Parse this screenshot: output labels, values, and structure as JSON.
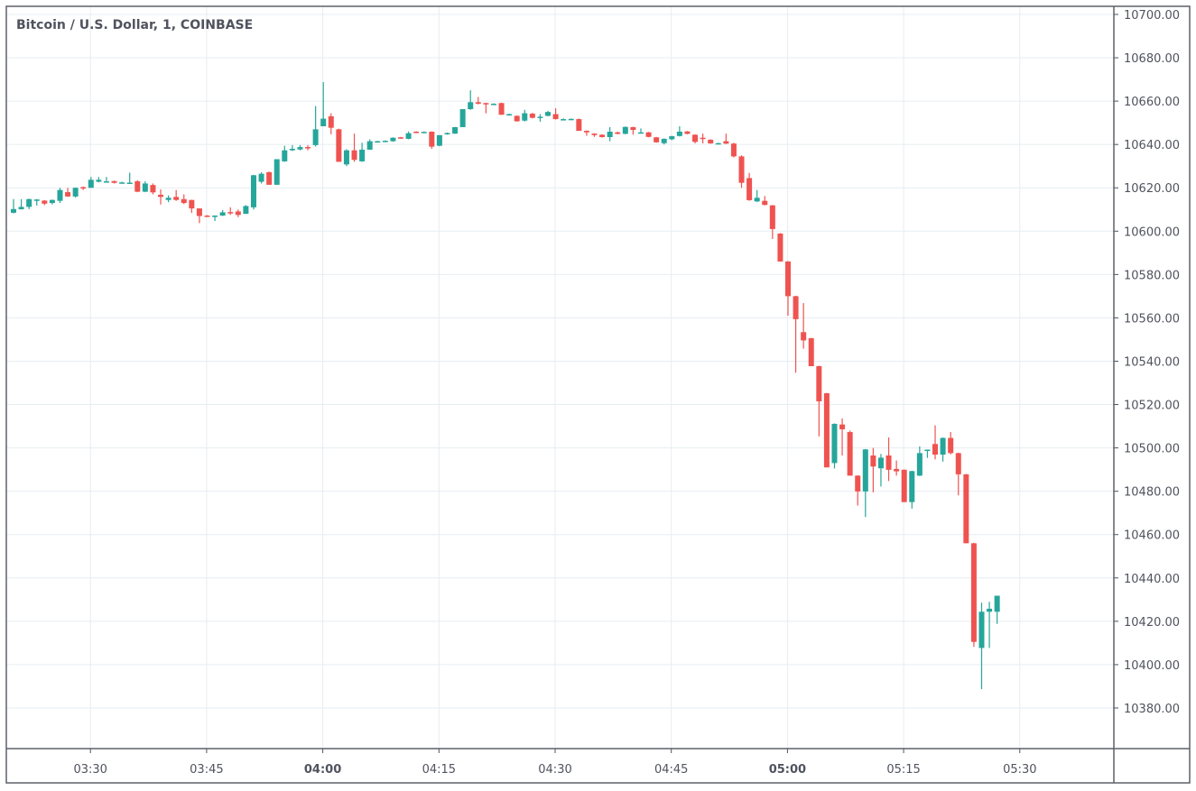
{
  "chart_data": {
    "type": "candlestick",
    "title": "Bitcoin / U.S. Dollar, 1, COINBASE",
    "interval_minutes": 1,
    "start_time": "03:20",
    "ylim": [
      10364,
      10703
    ],
    "y_ticks": [
      "10700.00",
      "10680.00",
      "10660.00",
      "10640.00",
      "10620.00",
      "10600.00",
      "10580.00",
      "10560.00",
      "10540.00",
      "10520.00",
      "10500.00",
      "10480.00",
      "10460.00",
      "10440.00",
      "10420.00",
      "10400.00",
      "10380.00"
    ],
    "x_ticks": [
      {
        "label": "03:30",
        "bold": false
      },
      {
        "label": "03:45",
        "bold": false
      },
      {
        "label": "04:00",
        "bold": true
      },
      {
        "label": "04:15",
        "bold": false
      },
      {
        "label": "04:30",
        "bold": false
      },
      {
        "label": "04:45",
        "bold": false
      },
      {
        "label": "05:00",
        "bold": true
      },
      {
        "label": "05:15",
        "bold": false
      },
      {
        "label": "05:30",
        "bold": false
      }
    ],
    "grid": true,
    "colors": {
      "up": "#26a69a",
      "down": "#ef5350",
      "grid": "#e6edf2",
      "axis": "#50535e"
    },
    "ohlc_columns": [
      "open",
      "high",
      "low",
      "close"
    ],
    "ohlc": [
      [
        10608.5,
        10614.8,
        10608.2,
        10610.2
      ],
      [
        10610.1,
        10614.8,
        10610.0,
        10611.2
      ],
      [
        10611.2,
        10615.0,
        10610.2,
        10614.8
      ],
      [
        10614.3,
        10614.8,
        10611.8,
        10614.6
      ],
      [
        10614.1,
        10614.3,
        10612.0,
        10612.7
      ],
      [
        10613.0,
        10614.6,
        10612.3,
        10614.4
      ],
      [
        10614.0,
        10620.0,
        10613.0,
        10619.0
      ],
      [
        10618.0,
        10620.0,
        10615.8,
        10616.0
      ],
      [
        10616.0,
        10620.2,
        10615.5,
        10620.0
      ],
      [
        10620.3,
        10620.6,
        10619.0,
        10619.8
      ],
      [
        10620.0,
        10625.0,
        10620.0,
        10623.7
      ],
      [
        10622.8,
        10625.0,
        10622.5,
        10623.7
      ],
      [
        10622.6,
        10625.0,
        10622.5,
        10623.0
      ],
      [
        10623.1,
        10623.3,
        10622.0,
        10622.3
      ],
      [
        10622.3,
        10622.8,
        10622.0,
        10622.5
      ],
      [
        10622.0,
        10627.0,
        10622.0,
        10622.4
      ],
      [
        10623.0,
        10623.5,
        10618.0,
        10618.2
      ],
      [
        10618.2,
        10623.0,
        10618.0,
        10622.0
      ],
      [
        10621.3,
        10622.0,
        10617.0,
        10617.9
      ],
      [
        10616.8,
        10619.3,
        10612.3,
        10615.8
      ],
      [
        10614.4,
        10616.5,
        10613.4,
        10615.4
      ],
      [
        10615.8,
        10619.0,
        10614.0,
        10614.4
      ],
      [
        10614.8,
        10617.0,
        10612.5,
        10613.0
      ],
      [
        10614.4,
        10614.5,
        10608.4,
        10610.5
      ],
      [
        10610.5,
        10610.5,
        10603.7,
        10607.0
      ],
      [
        10607.2,
        10607.4,
        10606.5,
        10607.0
      ],
      [
        10606.9,
        10607.3,
        10604.7,
        10607.2
      ],
      [
        10607.2,
        10609.7,
        10607.0,
        10608.7
      ],
      [
        10608.8,
        10611.0,
        10607.5,
        10608.2
      ],
      [
        10609.1,
        10610.0,
        10606.5,
        10607.5
      ],
      [
        10608.0,
        10612.0,
        10608.0,
        10611.6
      ],
      [
        10611.0,
        10626.0,
        10610.0,
        10625.8
      ],
      [
        10622.8,
        10627.2,
        10622.0,
        10626.5
      ],
      [
        10627.2,
        10627.5,
        10621.4,
        10621.4
      ],
      [
        10621.4,
        10633.2,
        10621.4,
        10633.2
      ],
      [
        10632.2,
        10639.4,
        10632.0,
        10637.3
      ],
      [
        10637.3,
        10639.7,
        10637.0,
        10638.0
      ],
      [
        10637.7,
        10639.7,
        10637.3,
        10638.8
      ],
      [
        10638.8,
        10639.7,
        10637.3,
        10638.5
      ],
      [
        10639.7,
        10657.7,
        10639.1,
        10647.0
      ],
      [
        10648.4,
        10668.8,
        10648.4,
        10651.9
      ],
      [
        10653.0,
        10654.4,
        10644.7,
        10647.7
      ],
      [
        10647.0,
        10647.3,
        10632.0,
        10632.0
      ],
      [
        10630.8,
        10637.8,
        10630.0,
        10637.3
      ],
      [
        10637.3,
        10645.0,
        10632.0,
        10632.9
      ],
      [
        10632.2,
        10640.8,
        10632.0,
        10637.6
      ],
      [
        10637.6,
        10642.4,
        10637.6,
        10641.5
      ],
      [
        10641.3,
        10641.7,
        10641.0,
        10641.5
      ],
      [
        10641.5,
        10641.9,
        10641.3,
        10641.7
      ],
      [
        10641.5,
        10643.3,
        10641.3,
        10643.1
      ],
      [
        10643.3,
        10643.5,
        10642.6,
        10642.8
      ],
      [
        10642.6,
        10646.0,
        10642.4,
        10645.2
      ],
      [
        10645.9,
        10646.1,
        10645.2,
        10645.4
      ],
      [
        10645.8,
        10646.0,
        10645.6,
        10645.8
      ],
      [
        10645.9,
        10646.0,
        10638.0,
        10639.0
      ],
      [
        10639.4,
        10644.3,
        10639.2,
        10644.3
      ],
      [
        10644.7,
        10645.5,
        10644.5,
        10645.3
      ],
      [
        10645.0,
        10648.1,
        10644.9,
        10648.0
      ],
      [
        10648.0,
        10656.3,
        10648.0,
        10656.3
      ],
      [
        10656.3,
        10665.0,
        10656.0,
        10659.5
      ],
      [
        10659.5,
        10661.9,
        10658.5,
        10658.8
      ],
      [
        10659.1,
        10659.3,
        10654.4,
        10658.8
      ],
      [
        10658.8,
        10659.0,
        10658.6,
        10658.8
      ],
      [
        10659.1,
        10659.3,
        10653.7,
        10653.7
      ],
      [
        10653.7,
        10654.2,
        10653.5,
        10654.0
      ],
      [
        10653.2,
        10653.4,
        10650.5,
        10650.7
      ],
      [
        10651.0,
        10656.0,
        10650.6,
        10654.4
      ],
      [
        10654.2,
        10654.6,
        10652.0,
        10652.3
      ],
      [
        10652.5,
        10654.0,
        10650.5,
        10652.8
      ],
      [
        10653.2,
        10655.5,
        10653.0,
        10655.0
      ],
      [
        10654.0,
        10656.7,
        10651.5,
        10651.7
      ],
      [
        10651.7,
        10652.0,
        10651.5,
        10651.7
      ],
      [
        10651.7,
        10652.0,
        10651.5,
        10651.8
      ],
      [
        10651.7,
        10652.0,
        10646.3,
        10646.3
      ],
      [
        10646.3,
        10646.5,
        10644.0,
        10645.6
      ],
      [
        10645.0,
        10645.2,
        10643.5,
        10644.3
      ],
      [
        10644.5,
        10644.7,
        10643.2,
        10643.4
      ],
      [
        10643.4,
        10648.0,
        10641.5,
        10645.9
      ],
      [
        10645.6,
        10645.9,
        10644.7,
        10644.9
      ],
      [
        10644.9,
        10648.3,
        10644.7,
        10648.1
      ],
      [
        10648.0,
        10648.2,
        10644.5,
        10646.7
      ],
      [
        10645.4,
        10647.4,
        10645.2,
        10645.6
      ],
      [
        10645.6,
        10645.8,
        10643.3,
        10643.5
      ],
      [
        10643.3,
        10643.5,
        10640.8,
        10641.0
      ],
      [
        10640.6,
        10642.8,
        10640.0,
        10642.6
      ],
      [
        10642.4,
        10644.0,
        10642.0,
        10643.8
      ],
      [
        10643.9,
        10648.4,
        10643.7,
        10645.9
      ],
      [
        10646.0,
        10646.2,
        10644.7,
        10644.9
      ],
      [
        10644.5,
        10644.7,
        10640.5,
        10641.2
      ],
      [
        10643.1,
        10645.0,
        10640.5,
        10642.6
      ],
      [
        10642.2,
        10642.4,
        10640.3,
        10640.5
      ],
      [
        10640.4,
        10640.8,
        10640.3,
        10640.6
      ],
      [
        10641.5,
        10645.0,
        10640.2,
        10640.4
      ],
      [
        10640.4,
        10640.8,
        10634.0,
        10634.5
      ],
      [
        10634.5,
        10635.0,
        10620.0,
        10622.3
      ],
      [
        10624.5,
        10626.9,
        10614.0,
        10614.3
      ],
      [
        10613.7,
        10619.0,
        10613.5,
        10615.4
      ],
      [
        10614.0,
        10616.2,
        10611.9,
        10612.1
      ],
      [
        10611.9,
        10612.1,
        10596.4,
        10601.0
      ],
      [
        10598.9,
        10599.1,
        10586.0,
        10586.0
      ],
      [
        10586.0,
        10586.2,
        10561.0,
        10570.0
      ],
      [
        10570.0,
        10570.2,
        10534.7,
        10559.4
      ],
      [
        10553.4,
        10566.8,
        10545.8,
        10549.6
      ],
      [
        10550.6,
        10550.8,
        10537.7,
        10537.7
      ],
      [
        10537.7,
        10537.9,
        10505.3,
        10521.5
      ],
      [
        10525.2,
        10525.4,
        10491.0,
        10491.0
      ],
      [
        10493.0,
        10511.3,
        10490.5,
        10511.1
      ],
      [
        10510.8,
        10513.6,
        10496.5,
        10508.6
      ],
      [
        10507.3,
        10508.0,
        10487.2,
        10487.2
      ],
      [
        10487.2,
        10487.4,
        10473.4,
        10479.9
      ],
      [
        10479.9,
        10499.5,
        10468.1,
        10499.3
      ],
      [
        10496.5,
        10500.0,
        10479.5,
        10491.4
      ],
      [
        10490.6,
        10497.2,
        10482.2,
        10495.5
      ],
      [
        10496.5,
        10504.8,
        10484.7,
        10489.9
      ],
      [
        10490.3,
        10494.2,
        10487.2,
        10489.2
      ],
      [
        10489.9,
        10490.1,
        10475.0,
        10475.0
      ],
      [
        10475.0,
        10489.5,
        10472.0,
        10489.3
      ],
      [
        10487.2,
        10500.7,
        10487.0,
        10497.6
      ],
      [
        10499.0,
        10499.2,
        10495.4,
        10499.2
      ],
      [
        10501.8,
        10510.4,
        10494.7,
        10496.9
      ],
      [
        10496.9,
        10504.8,
        10493.7,
        10504.6
      ],
      [
        10504.6,
        10507.3,
        10497.0,
        10497.6
      ],
      [
        10497.6,
        10497.8,
        10478.1,
        10487.8
      ],
      [
        10487.8,
        10488.0,
        10456.0,
        10456.0
      ],
      [
        10456.0,
        10456.2,
        10408.2,
        10410.5
      ],
      [
        10407.7,
        10428.6,
        10388.7,
        10424.4
      ],
      [
        10424.4,
        10429.0,
        10407.7,
        10425.8
      ],
      [
        10424.4,
        10431.8,
        10418.8,
        10431.8
      ]
    ]
  }
}
